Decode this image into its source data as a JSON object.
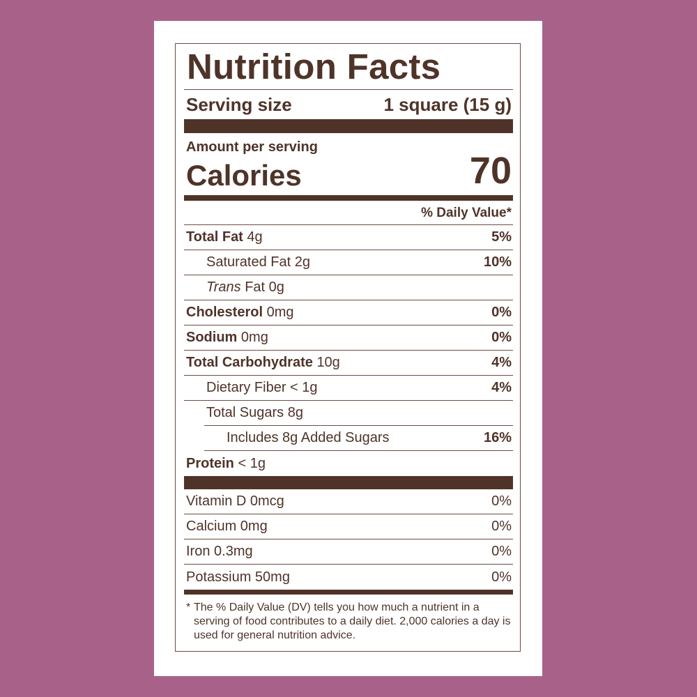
{
  "title": "Nutrition Facts",
  "serving": {
    "label": "Serving size",
    "value": "1 square (15 g)"
  },
  "amount_label": "Amount per serving",
  "calories": {
    "label": "Calories",
    "value": "70"
  },
  "dv_header": "% Daily Value*",
  "nutrients": [
    {
      "name": "Total Fat",
      "amount": "4g",
      "dv": "5%",
      "bold": true,
      "indent": 0
    },
    {
      "name": "Saturated Fat",
      "amount": "2g",
      "dv": "10%",
      "bold": false,
      "indent": 1
    },
    {
      "name": "Trans",
      "name_suffix": "Fat",
      "amount": "0g",
      "dv": "",
      "bold": false,
      "indent": 1,
      "italic_prefix": true
    },
    {
      "name": "Cholesterol",
      "amount": "0mg",
      "dv": "0%",
      "bold": true,
      "indent": 0
    },
    {
      "name": "Sodium",
      "amount": "0mg",
      "dv": "0%",
      "bold": true,
      "indent": 0
    },
    {
      "name": "Total Carbohydrate",
      "amount": "10g",
      "dv": "4%",
      "bold": true,
      "indent": 0
    },
    {
      "name": "Dietary Fiber",
      "amount": "< 1g",
      "dv": "4%",
      "bold": false,
      "indent": 1
    },
    {
      "name": "Total Sugars",
      "amount": "8g",
      "dv": "",
      "bold": false,
      "indent": 1
    },
    {
      "name": "Includes 8g Added Sugars",
      "amount": "",
      "dv": "16%",
      "bold": false,
      "indent": 2
    },
    {
      "name": "Protein",
      "amount": "< 1g",
      "dv": "",
      "bold": true,
      "indent": 0
    }
  ],
  "vitamins": [
    {
      "name": "Vitamin D 0mcg",
      "dv": "0%"
    },
    {
      "name": "Calcium 0mg",
      "dv": "0%"
    },
    {
      "name": "Iron 0.3mg",
      "dv": "0%"
    },
    {
      "name": "Potassium 50mg",
      "dv": "0%"
    }
  ],
  "footnote": {
    "star": "*",
    "text": "The % Daily Value (DV) tells you how much a nutrient in a serving of food contributes to a daily diet. 2,000 calories a day is used for general nutrition advice."
  },
  "colors": {
    "background": "#a8628a",
    "ink": "#4f3329",
    "panel": "#ffffff"
  }
}
